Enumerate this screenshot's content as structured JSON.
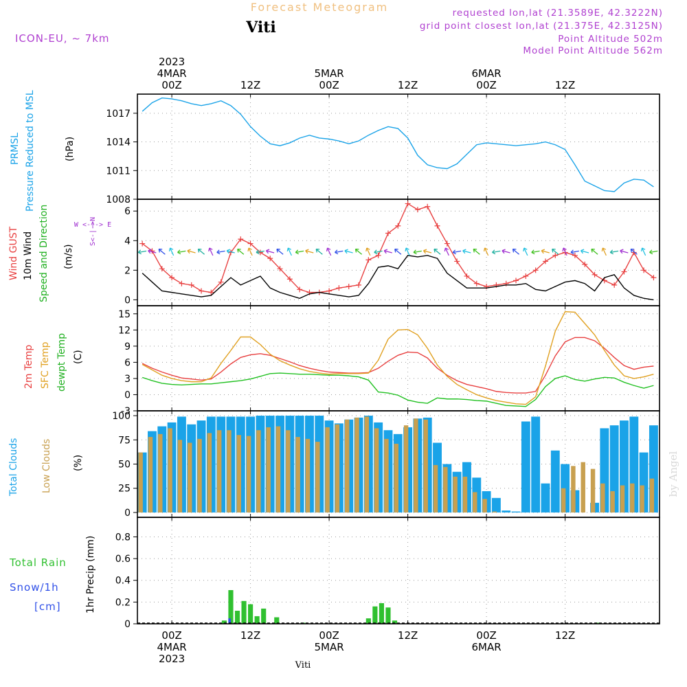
{
  "header": {
    "title": "Forecast Meteogram",
    "station": "Viti",
    "model": "ICON-EU, ~ 7km",
    "requested": "requested lon,lat (21.3589E, 42.3222N)",
    "gridpoint": "grid point closest lon,lat (21.375E, 42.3125N)",
    "point_alt": "Point Altitude 502m",
    "model_alt": "Model Point Altitude 562m",
    "footer_station": "Viti",
    "credit": "by Angel"
  },
  "colors": {
    "pressure": "#1aa3e8",
    "gust": "#e84040",
    "wind": "#000000",
    "temp2m": "#e84040",
    "sfc": "#e0a020",
    "dewpt": "#20c020",
    "total_clouds": "#1aa3e8",
    "low_clouds": "#c8a050",
    "rain": "#30c030",
    "snow": "#3050e8",
    "meta": "#b040d0",
    "title": "#f0c080",
    "dir": "#a030d0"
  },
  "time_axis": {
    "top_labels": [
      {
        "t": 0,
        "lines": [
          "2023",
          "4MAR",
          "00Z"
        ]
      },
      {
        "t": 12,
        "lines": [
          "12Z"
        ]
      },
      {
        "t": 24,
        "lines": [
          "5MAR",
          "00Z"
        ]
      },
      {
        "t": 36,
        "lines": [
          "12Z"
        ]
      },
      {
        "t": 48,
        "lines": [
          "6MAR",
          "00Z"
        ]
      },
      {
        "t": 60,
        "lines": [
          "12Z"
        ]
      }
    ],
    "bottom_labels": [
      {
        "t": 0,
        "lines": [
          "00Z",
          "4MAR",
          "2023"
        ]
      },
      {
        "t": 12,
        "lines": [
          "12Z"
        ]
      },
      {
        "t": 24,
        "lines": [
          "00Z",
          "5MAR"
        ]
      },
      {
        "t": 36,
        "lines": [
          "12Z"
        ]
      },
      {
        "t": 48,
        "lines": [
          "00Z",
          "6MAR"
        ]
      },
      {
        "t": 60,
        "lines": [
          "12Z"
        ]
      }
    ]
  },
  "panel_labels": {
    "pressure": {
      "name": "PRMSL",
      "desc": "Pressure Reduced to MSL",
      "unit": "(hPa)"
    },
    "wind": {
      "gust": "Wind GUST",
      "wind": "10m Wind",
      "speed": "Speed and Direction",
      "unit": "(m/s)",
      "compass_n": "N",
      "compass_s": "S",
      "compass_w": "W",
      "compass_e": "E",
      "compass_ns": "S<-|->N",
      "compass_we": "W <-|-> E"
    },
    "temp": {
      "t2m": "2m Temp",
      "sfc": "SFC Temp",
      "dewpt": "dewpt Temp",
      "unit": "(C)"
    },
    "clouds": {
      "total": "Total Clouds",
      "low": "Low Clouds",
      "unit": "(%)"
    },
    "precip": {
      "rain": "Total  Rain",
      "snow": "Snow/1h",
      "snow_unit": "[cm]",
      "axis": "1hr Precip (mm)"
    }
  },
  "chart_data": [
    {
      "type": "line",
      "name": "pressure",
      "x_unit": "hours from 4MAR 00Z",
      "x": [
        -4.5,
        -3,
        -1.5,
        0,
        1.5,
        3,
        4.5,
        6,
        7.5,
        9,
        10.5,
        12,
        13.5,
        15,
        16.5,
        18,
        19.5,
        21,
        22.5,
        24,
        25.5,
        27,
        28.5,
        30,
        31.5,
        33,
        34.5,
        36,
        37.5,
        39,
        40.5,
        42,
        43.5,
        45,
        46.5,
        48,
        49.5,
        51,
        52.5,
        54,
        55.5,
        57,
        58.5,
        60,
        61.5,
        63,
        64.5,
        66,
        67.5,
        69,
        70.5,
        72,
        73.5
      ],
      "series": [
        {
          "name": "PRMSL",
          "values": [
            1017.2,
            1018.1,
            1018.6,
            1018.5,
            1018.3,
            1018.0,
            1017.8,
            1018.0,
            1018.3,
            1017.8,
            1016.9,
            1015.6,
            1014.6,
            1013.8,
            1013.6,
            1013.9,
            1014.4,
            1014.7,
            1014.4,
            1014.3,
            1014.1,
            1013.8,
            1014.1,
            1014.7,
            1015.2,
            1015.6,
            1015.4,
            1014.4,
            1012.6,
            1011.6,
            1011.3,
            1011.2,
            1011.7,
            1012.7,
            1013.7,
            1013.9,
            1013.8,
            1013.7,
            1013.6,
            1013.7,
            1013.8,
            1014.0,
            1013.7,
            1013.2,
            1011.6,
            1009.9,
            1009.4,
            1008.9,
            1008.8,
            1009.7,
            1010.1,
            1010.0,
            1009.3
          ]
        }
      ],
      "ylim": [
        1008,
        1019
      ],
      "yticks": [
        "1008",
        "1011",
        "1014",
        "1017"
      ]
    },
    {
      "type": "line",
      "name": "wind",
      "x_unit": "hours from 4MAR 00Z",
      "x": [
        -4.5,
        -3,
        -1.5,
        0,
        1.5,
        3,
        4.5,
        6,
        7.5,
        9,
        10.5,
        12,
        13.5,
        15,
        16.5,
        18,
        19.5,
        21,
        22.5,
        24,
        25.5,
        27,
        28.5,
        30,
        31.5,
        33,
        34.5,
        36,
        37.5,
        39,
        40.5,
        42,
        43.5,
        45,
        46.5,
        48,
        49.5,
        51,
        52.5,
        54,
        55.5,
        57,
        58.5,
        60,
        61.5,
        63,
        64.5,
        66,
        67.5,
        69,
        70.5,
        72,
        73.5
      ],
      "series": [
        {
          "name": "Wind GUST",
          "values": [
            3.8,
            3.3,
            2.1,
            1.5,
            1.1,
            1.0,
            0.6,
            0.5,
            1.2,
            3.2,
            4.1,
            3.8,
            3.2,
            2.8,
            2.1,
            1.4,
            0.7,
            0.5,
            0.5,
            0.6,
            0.8,
            0.9,
            1.0,
            2.7,
            3.0,
            4.5,
            5.0,
            6.5,
            6.1,
            6.3,
            5.0,
            3.8,
            2.6,
            1.6,
            1.1,
            0.9,
            1.0,
            1.1,
            1.3,
            1.6,
            2.0,
            2.6,
            3.0,
            3.2,
            3.0,
            2.4,
            1.7,
            1.3,
            1.0,
            1.9,
            3.2,
            2.0,
            1.5
          ]
        },
        {
          "name": "10m Wind",
          "values": [
            1.8,
            1.2,
            0.6,
            0.5,
            0.4,
            0.3,
            0.2,
            0.3,
            0.9,
            1.5,
            1.0,
            1.3,
            1.6,
            0.8,
            0.5,
            0.3,
            0.1,
            0.4,
            0.5,
            0.4,
            0.3,
            0.2,
            0.3,
            1.1,
            2.2,
            2.3,
            2.1,
            3.0,
            2.9,
            3.0,
            2.8,
            1.8,
            1.3,
            0.8,
            0.8,
            0.8,
            0.9,
            1.0,
            1.0,
            1.1,
            0.7,
            0.6,
            0.9,
            1.2,
            1.3,
            1.1,
            0.6,
            1.5,
            1.7,
            0.8,
            0.3,
            0.1,
            0.0
          ]
        }
      ],
      "ylim": [
        -0.4,
        6.8
      ],
      "yticks": [
        "0",
        "2",
        "4",
        "6"
      ]
    },
    {
      "type": "line",
      "name": "temperature",
      "x_unit": "hours from 4MAR 00Z",
      "x": [
        -4.5,
        -3,
        -1.5,
        0,
        1.5,
        3,
        4.5,
        6,
        7.5,
        9,
        10.5,
        12,
        13.5,
        15,
        16.5,
        18,
        19.5,
        21,
        22.5,
        24,
        25.5,
        27,
        28.5,
        30,
        31.5,
        33,
        34.5,
        36,
        37.5,
        39,
        40.5,
        42,
        43.5,
        45,
        46.5,
        48,
        49.5,
        51,
        52.5,
        54,
        55.5,
        57,
        58.5,
        60,
        61.5,
        63,
        64.5,
        66,
        67.5,
        69,
        70.5,
        72,
        73.5
      ],
      "series": [
        {
          "name": "2m Temp",
          "values": [
            5.8,
            4.9,
            4.2,
            3.6,
            3.1,
            2.9,
            2.7,
            2.9,
            4.2,
            5.7,
            6.9,
            7.4,
            7.6,
            7.3,
            6.7,
            6.1,
            5.4,
            4.9,
            4.5,
            4.2,
            4.1,
            4.0,
            4.0,
            4.1,
            4.9,
            6.2,
            7.3,
            7.9,
            7.8,
            6.8,
            4.9,
            3.6,
            2.6,
            1.9,
            1.5,
            1.1,
            0.6,
            0.4,
            0.3,
            0.3,
            0.6,
            3.6,
            7.2,
            9.8,
            10.6,
            10.6,
            10.0,
            8.6,
            6.9,
            5.4,
            4.7,
            5.1,
            5.3
          ]
        },
        {
          "name": "SFC Temp",
          "values": [
            5.6,
            4.6,
            3.6,
            3.0,
            2.6,
            2.4,
            2.4,
            3.1,
            5.8,
            8.2,
            10.7,
            10.7,
            9.3,
            7.5,
            6.3,
            5.5,
            4.8,
            4.3,
            4.0,
            3.8,
            3.9,
            3.9,
            3.9,
            4.0,
            6.4,
            10.3,
            12.0,
            12.1,
            11.1,
            8.6,
            5.5,
            3.4,
            1.9,
            0.9,
            0.0,
            -0.6,
            -1.1,
            -1.4,
            -1.7,
            -1.8,
            -0.4,
            5.3,
            11.8,
            15.4,
            15.3,
            13.2,
            11.1,
            8.2,
            5.5,
            3.5,
            3.0,
            3.3,
            3.8
          ]
        },
        {
          "name": "dewpt Temp",
          "values": [
            3.2,
            2.6,
            2.1,
            1.9,
            1.8,
            1.9,
            2.0,
            2.0,
            2.2,
            2.4,
            2.6,
            2.9,
            3.4,
            3.9,
            4.0,
            3.9,
            3.8,
            3.8,
            3.7,
            3.6,
            3.6,
            3.5,
            3.3,
            2.7,
            0.5,
            0.3,
            -0.1,
            -1.0,
            -1.4,
            -1.6,
            -0.6,
            -0.8,
            -0.8,
            -0.9,
            -1.1,
            -1.2,
            -1.6,
            -2.0,
            -2.1,
            -2.2,
            -0.9,
            1.5,
            3.0,
            3.5,
            2.8,
            2.5,
            2.9,
            3.2,
            3.1,
            2.3,
            1.7,
            1.2,
            1.7
          ]
        }
      ],
      "ylim": [
        -3,
        16.5
      ],
      "yticks": [
        "-3",
        "0",
        "3",
        "6",
        "9",
        "12",
        "15"
      ]
    },
    {
      "type": "bar",
      "name": "clouds",
      "x_unit": "hours from 4MAR 00Z",
      "x": [
        -4.5,
        -3,
        -1.5,
        0,
        1.5,
        3,
        4.5,
        6,
        7.5,
        9,
        10.5,
        12,
        13.5,
        15,
        16.5,
        18,
        19.5,
        21,
        22.5,
        24,
        25.5,
        27,
        28.5,
        30,
        31.5,
        33,
        34.5,
        36,
        37.5,
        39,
        40.5,
        42,
        43.5,
        45,
        46.5,
        48,
        49.5,
        51,
        52.5,
        54,
        55.5,
        57,
        58.5,
        60,
        61.5,
        63,
        64.5,
        66,
        67.5,
        69,
        70.5,
        72,
        73.5
      ],
      "series": [
        {
          "name": "Total Clouds",
          "values": [
            62,
            84,
            89,
            93,
            99,
            91,
            95,
            99,
            99,
            99,
            99,
            99,
            100,
            100,
            100,
            100,
            100,
            100,
            100,
            95,
            92,
            96,
            98,
            100,
            93,
            85,
            81,
            88,
            97,
            98,
            72,
            50,
            42,
            52,
            36,
            22,
            15,
            2,
            1,
            94,
            99,
            30,
            64,
            50,
            23,
            0,
            10,
            87,
            90,
            95,
            99,
            62,
            90
          ]
        },
        {
          "name": "Low Clouds",
          "values": [
            62,
            78,
            81,
            87,
            75,
            72,
            76,
            82,
            85,
            85,
            80,
            79,
            85,
            88,
            89,
            85,
            78,
            76,
            73,
            88,
            91,
            96,
            98,
            99,
            87,
            76,
            71,
            90,
            97,
            96,
            49,
            47,
            37,
            37,
            21,
            14,
            1,
            0,
            0,
            0,
            0,
            0,
            0,
            25,
            48,
            52,
            45,
            30,
            22,
            28,
            30,
            28,
            35
          ]
        }
      ],
      "ylim": [
        -5,
        105
      ],
      "yticks": [
        "0",
        "25",
        "50",
        "75",
        "100"
      ]
    },
    {
      "type": "bar",
      "name": "precipitation",
      "x_unit": "hours from 4MAR 00Z",
      "x": [
        8,
        9,
        10,
        11,
        12,
        13,
        14,
        16,
        20,
        30,
        31,
        32,
        33,
        34,
        65
      ],
      "series": [
        {
          "name": "Total Rain",
          "values": [
            0.03,
            0.31,
            0.12,
            0.21,
            0.18,
            0.07,
            0.14,
            0.06,
            0.01,
            0.05,
            0.16,
            0.19,
            0.15,
            0.03,
            0.01
          ]
        },
        {
          "name": "Snow/1h",
          "values": [
            0,
            0.05,
            0,
            0,
            0,
            0,
            0,
            0,
            0,
            0,
            0,
            0,
            0,
            0,
            0
          ]
        }
      ],
      "ylim": [
        0,
        0.98
      ],
      "yticks": [
        "0",
        "0.2",
        "0.4",
        "0.6",
        "0.8"
      ]
    }
  ]
}
